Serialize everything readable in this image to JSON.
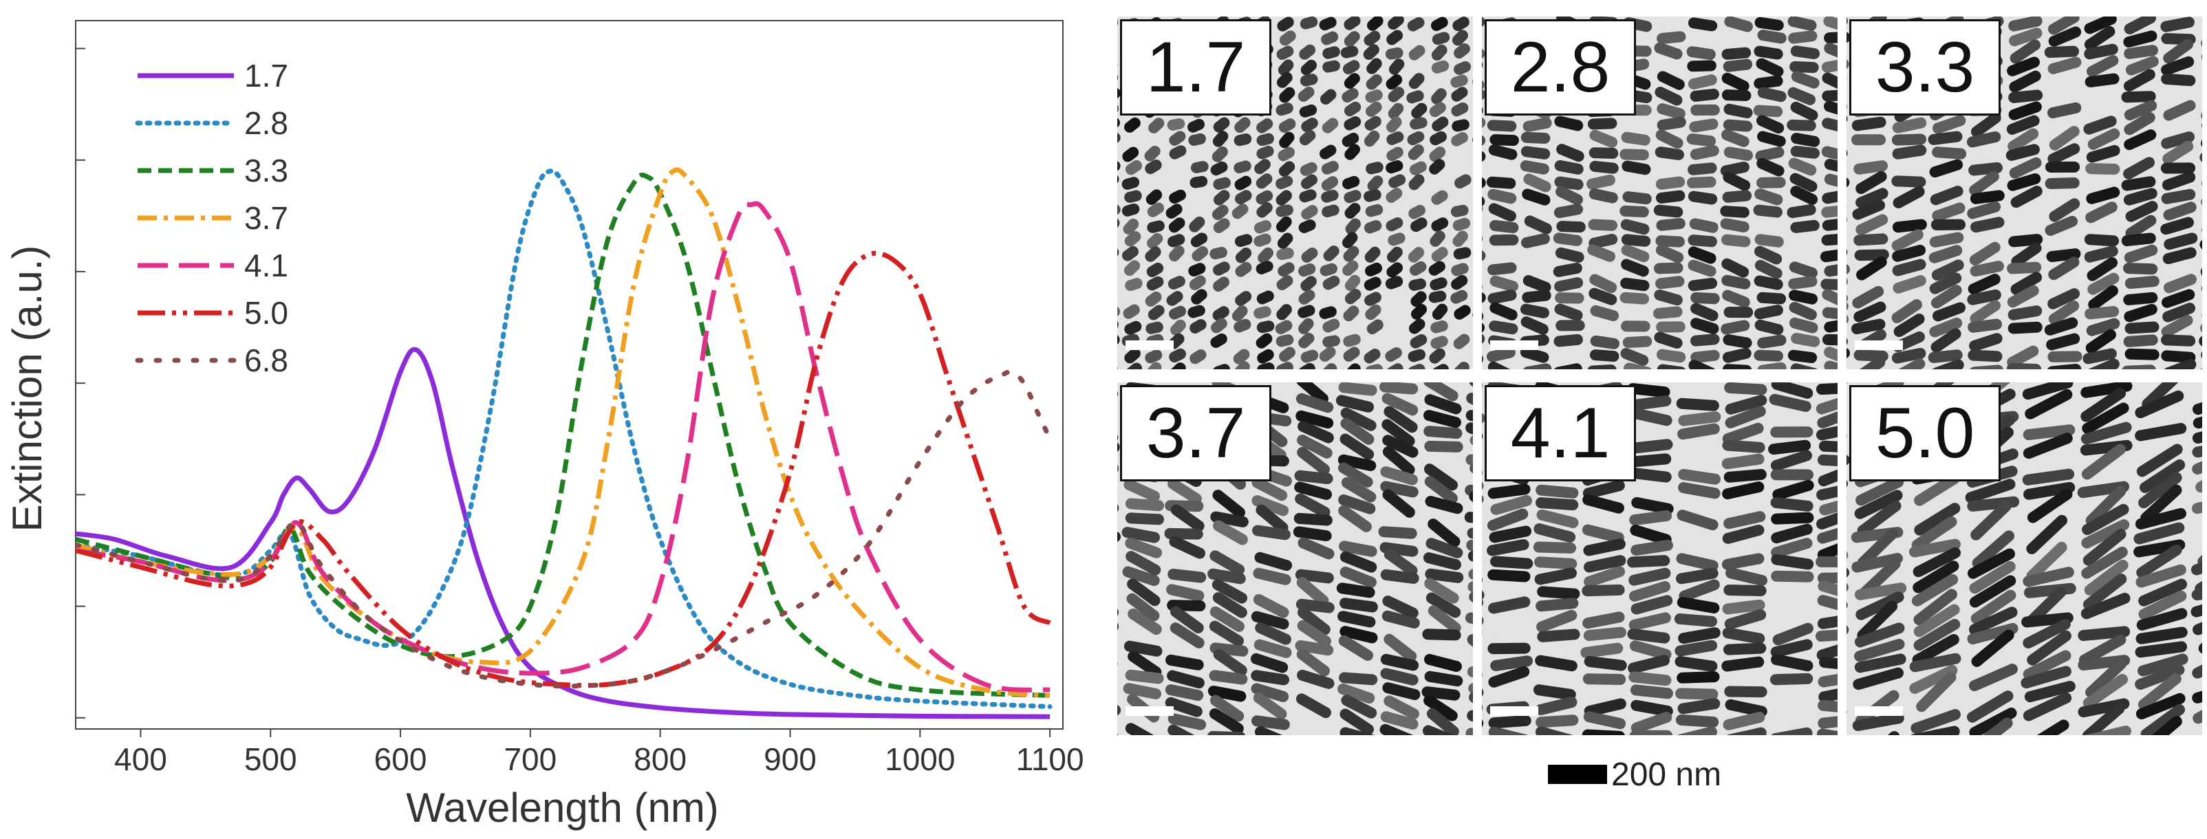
{
  "chart_data": {
    "type": "line",
    "title": "",
    "xlabel": "Wavelength (nm)",
    "ylabel": "Extinction (a.u.)",
    "xlim": [
      350,
      1110
    ],
    "ylim": [
      -0.02,
      1.25
    ],
    "xticks": [
      400,
      500,
      600,
      700,
      800,
      900,
      1000,
      1100
    ],
    "yticks": [
      0.0,
      0.2,
      0.4,
      0.6,
      0.8,
      1.0,
      1.2
    ],
    "yticklabels_visible": false,
    "grid": false,
    "legend_position": "top-left",
    "series": [
      {
        "name": "1.7",
        "color": "#8B2BD9",
        "style": "solid",
        "x": [
          350,
          380,
          420,
          470,
          500,
          510,
          520,
          530,
          545,
          560,
          580,
          600,
          612,
          625,
          640,
          660,
          680,
          700,
          730,
          760,
          800,
          850,
          900,
          1000,
          1100
        ],
        "y": [
          0.33,
          0.32,
          0.29,
          0.27,
          0.35,
          0.4,
          0.43,
          0.41,
          0.37,
          0.39,
          0.48,
          0.62,
          0.66,
          0.6,
          0.45,
          0.28,
          0.16,
          0.09,
          0.05,
          0.03,
          0.018,
          0.01,
          0.006,
          0.003,
          0.002
        ]
      },
      {
        "name": "2.8",
        "color": "#2A8BC4",
        "style": "dotted",
        "x": [
          350,
          400,
          450,
          480,
          500,
          515,
          530,
          550,
          570,
          590,
          610,
          630,
          650,
          670,
          690,
          705,
          715,
          725,
          740,
          760,
          780,
          800,
          830,
          860,
          900,
          950,
          1000,
          1100
        ],
        "y": [
          0.31,
          0.29,
          0.26,
          0.26,
          0.3,
          0.33,
          0.22,
          0.16,
          0.14,
          0.13,
          0.15,
          0.22,
          0.34,
          0.56,
          0.83,
          0.95,
          0.98,
          0.96,
          0.88,
          0.69,
          0.48,
          0.32,
          0.17,
          0.1,
          0.06,
          0.04,
          0.03,
          0.02
        ]
      },
      {
        "name": "3.3",
        "color": "#1E8020",
        "style": "dashed",
        "x": [
          350,
          400,
          450,
          480,
          500,
          515,
          530,
          560,
          600,
          640,
          680,
          700,
          720,
          740,
          760,
          780,
          790,
          800,
          820,
          840,
          860,
          880,
          900,
          950,
          1000,
          1100
        ],
        "y": [
          0.32,
          0.29,
          0.26,
          0.25,
          0.28,
          0.34,
          0.26,
          0.19,
          0.13,
          0.11,
          0.14,
          0.2,
          0.36,
          0.64,
          0.86,
          0.96,
          0.97,
          0.94,
          0.82,
          0.62,
          0.42,
          0.27,
          0.17,
          0.08,
          0.05,
          0.04
        ]
      },
      {
        "name": "3.7",
        "color": "#F0A020",
        "style": "dashdot",
        "x": [
          350,
          400,
          450,
          480,
          500,
          520,
          540,
          580,
          620,
          660,
          700,
          740,
          760,
          780,
          800,
          810,
          820,
          840,
          860,
          880,
          900,
          920,
          950,
          1000,
          1050,
          1100
        ],
        "y": [
          0.31,
          0.28,
          0.26,
          0.26,
          0.29,
          0.34,
          0.25,
          0.17,
          0.12,
          0.1,
          0.12,
          0.28,
          0.5,
          0.78,
          0.94,
          0.98,
          0.97,
          0.9,
          0.74,
          0.55,
          0.4,
          0.3,
          0.2,
          0.09,
          0.05,
          0.04
        ]
      },
      {
        "name": "4.1",
        "color": "#E0308C",
        "style": "longdash",
        "x": [
          350,
          400,
          450,
          480,
          500,
          520,
          540,
          580,
          620,
          660,
          700,
          740,
          780,
          800,
          820,
          840,
          860,
          870,
          880,
          900,
          920,
          940,
          960,
          1000,
          1050,
          1100
        ],
        "y": [
          0.3,
          0.28,
          0.25,
          0.25,
          0.28,
          0.35,
          0.26,
          0.17,
          0.12,
          0.09,
          0.08,
          0.09,
          0.14,
          0.24,
          0.45,
          0.75,
          0.9,
          0.92,
          0.91,
          0.82,
          0.62,
          0.44,
          0.3,
          0.14,
          0.06,
          0.05
        ]
      },
      {
        "name": "5.0",
        "color": "#D42020",
        "style": "dashdotdot",
        "x": [
          350,
          400,
          450,
          480,
          500,
          520,
          540,
          560,
          600,
          640,
          680,
          720,
          760,
          800,
          840,
          870,
          900,
          920,
          940,
          960,
          980,
          1000,
          1020,
          1040,
          1060,
          1080,
          1100
        ],
        "y": [
          0.3,
          0.27,
          0.24,
          0.24,
          0.27,
          0.35,
          0.32,
          0.26,
          0.16,
          0.1,
          0.07,
          0.06,
          0.06,
          0.08,
          0.13,
          0.24,
          0.44,
          0.64,
          0.78,
          0.83,
          0.82,
          0.76,
          0.62,
          0.48,
          0.34,
          0.2,
          0.17
        ]
      },
      {
        "name": "6.8",
        "color": "#8B4A4A",
        "style": "sparsedot",
        "x": [
          350,
          400,
          450,
          480,
          500,
          520,
          540,
          580,
          640,
          700,
          760,
          800,
          840,
          880,
          920,
          960,
          1000,
          1030,
          1050,
          1060,
          1070,
          1080,
          1090,
          1100
        ],
        "y": [
          0.31,
          0.28,
          0.25,
          0.25,
          0.29,
          0.35,
          0.27,
          0.17,
          0.09,
          0.06,
          0.06,
          0.08,
          0.12,
          0.17,
          0.22,
          0.31,
          0.46,
          0.56,
          0.6,
          0.61,
          0.62,
          0.6,
          0.55,
          0.5
        ]
      }
    ]
  },
  "tem_panels": [
    {
      "label": "1.7",
      "aspect": 1.7
    },
    {
      "label": "2.8",
      "aspect": 2.8
    },
    {
      "label": "3.3",
      "aspect": 3.3
    },
    {
      "label": "3.7",
      "aspect": 3.7
    },
    {
      "label": "4.1",
      "aspect": 4.1
    },
    {
      "label": "5.0",
      "aspect": 5.0
    }
  ],
  "scale_bar_label": "200 nm"
}
